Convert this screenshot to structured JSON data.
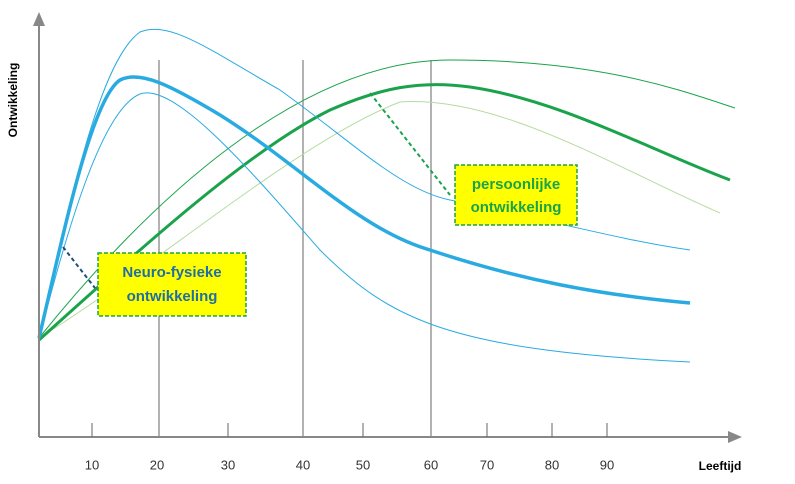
{
  "axes": {
    "y_label": "Ontwikkeling",
    "x_label": "Leeftijd",
    "x_ticks": [
      "10",
      "20",
      "30",
      "40",
      "50",
      "60",
      "70",
      "80",
      "90"
    ]
  },
  "boxes": [
    {
      "lines": [
        "Neuro-fysieke",
        "ontwikkeling"
      ]
    },
    {
      "lines": [
        "persoonlijke",
        "ontwikkeling"
      ]
    }
  ]
}
